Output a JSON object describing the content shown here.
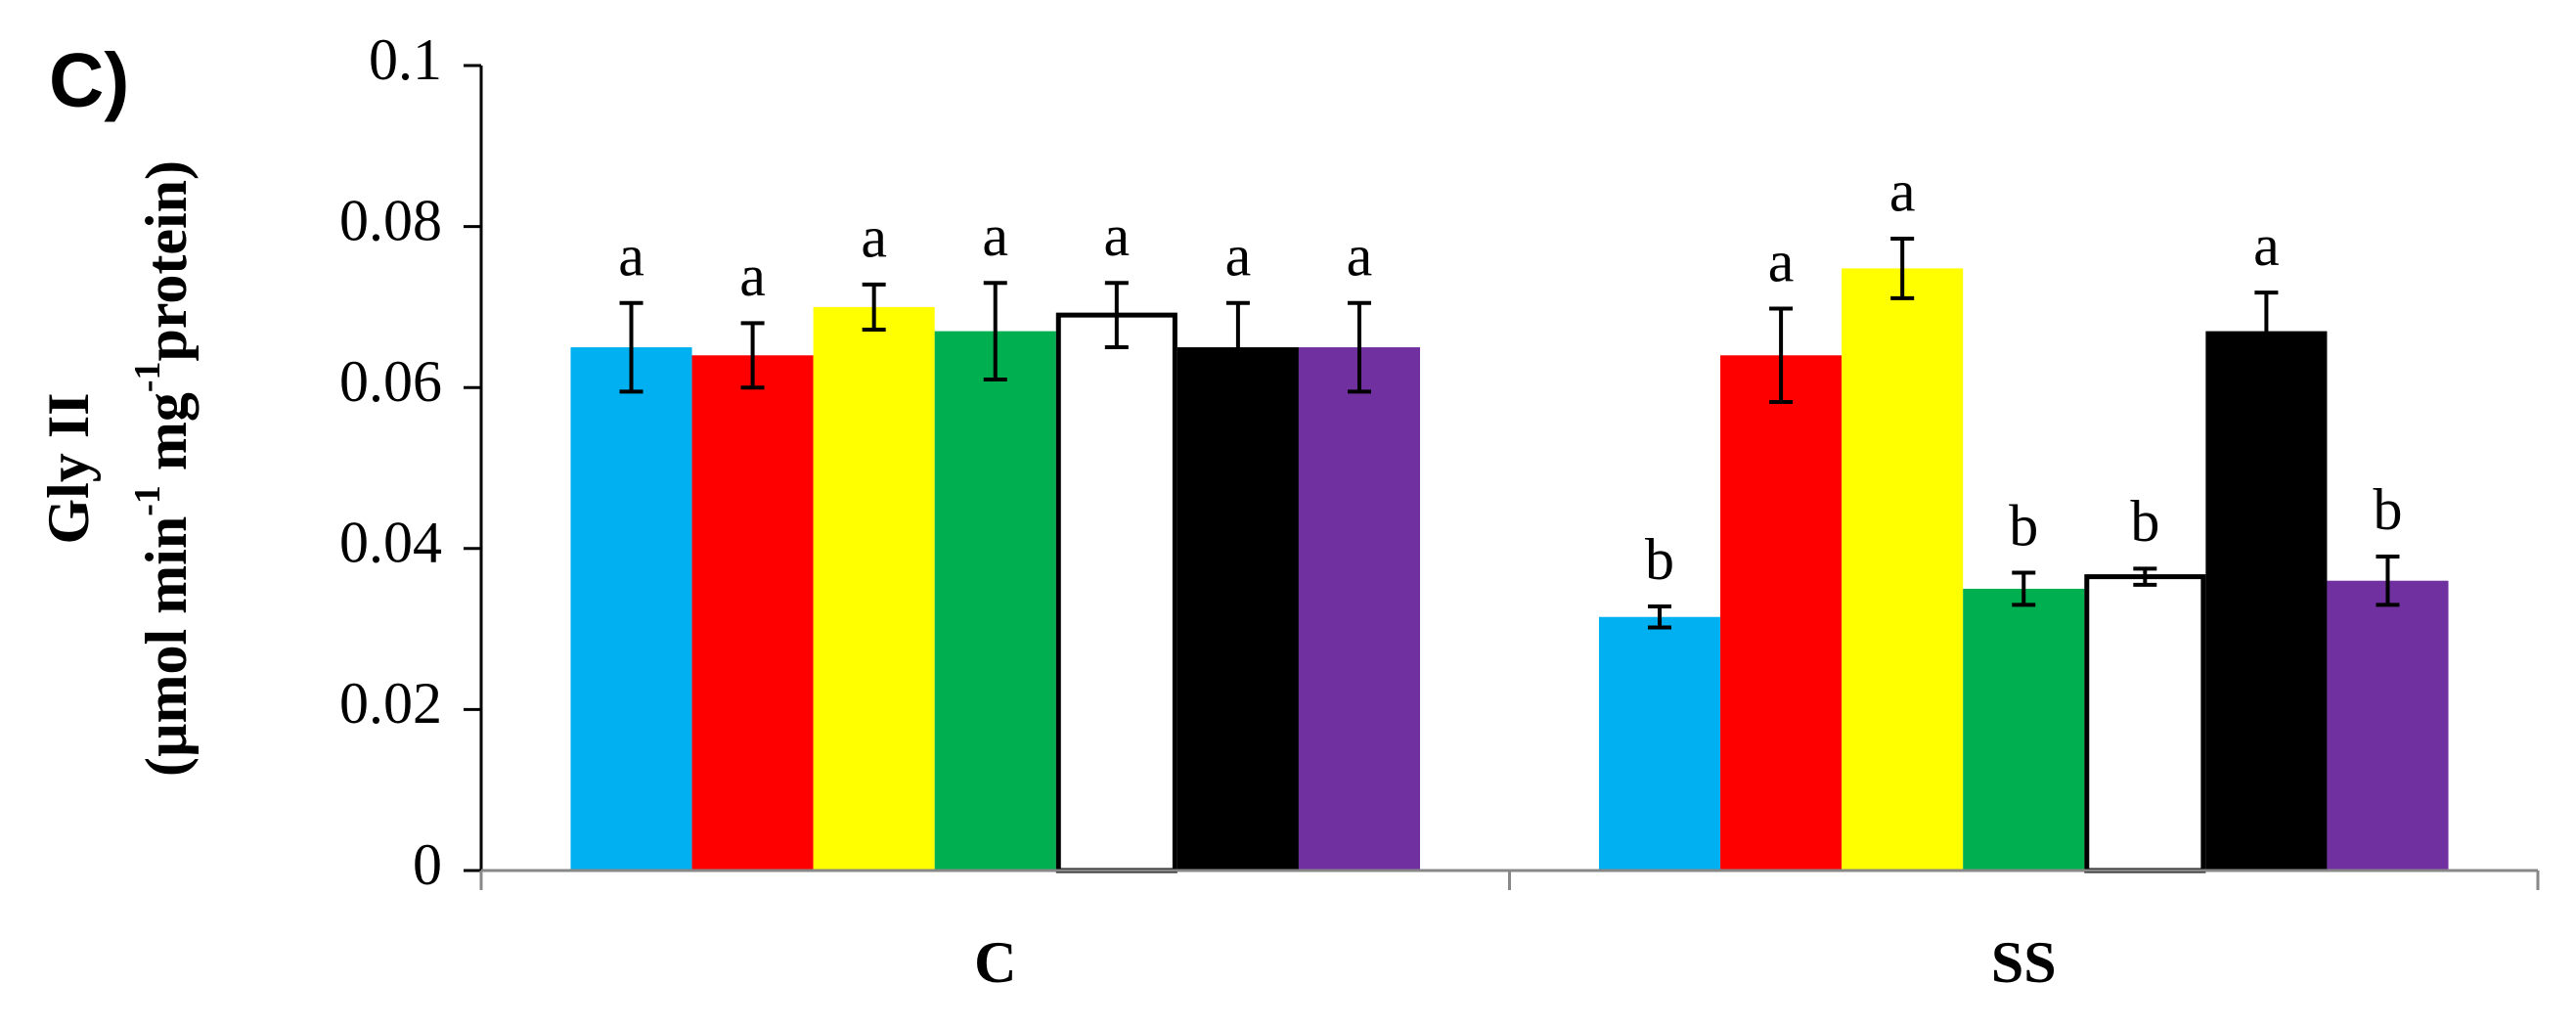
{
  "chart_data": {
    "type": "bar",
    "panel_label": "C)",
    "ylabel": {
      "title": "Gly II",
      "unit": [
        "(µmol min",
        "-1",
        " mg",
        "-1",
        "protein)"
      ]
    },
    "categories": [
      "C",
      "SS"
    ],
    "series": [
      {
        "color": "#00b0f0",
        "values": [
          0.065,
          0.0315
        ],
        "errors": [
          0.0055,
          0.0013
        ],
        "labels": [
          "a",
          "b"
        ]
      },
      {
        "color": "#ff0000",
        "values": [
          0.064,
          0.064
        ],
        "errors": [
          0.004,
          0.0058
        ],
        "labels": [
          "a",
          "a"
        ]
      },
      {
        "color": "#ffff00",
        "values": [
          0.07,
          0.0748
        ],
        "errors": [
          0.0028,
          0.0037
        ],
        "labels": [
          "a",
          "a"
        ]
      },
      {
        "color": "#00b050",
        "values": [
          0.067,
          0.035
        ],
        "errors": [
          0.006,
          0.002
        ],
        "labels": [
          "a",
          "b"
        ]
      },
      {
        "color": "#ffffff",
        "values": [
          0.069,
          0.0365
        ],
        "errors": [
          0.004,
          0.001
        ],
        "labels": [
          "a",
          "b"
        ]
      },
      {
        "color": "#000000",
        "values": [
          0.065,
          0.067
        ],
        "errors": [
          0.0055,
          0.0048
        ],
        "labels": [
          "a",
          "a"
        ]
      },
      {
        "color": "#7030a0",
        "values": [
          0.065,
          0.036
        ],
        "errors": [
          0.0055,
          0.003
        ],
        "labels": [
          "a",
          "b"
        ]
      }
    ],
    "ylim": [
      0,
      0.1
    ],
    "yticks": [
      0,
      0.02,
      0.04,
      0.06,
      0.08,
      0.1
    ]
  }
}
